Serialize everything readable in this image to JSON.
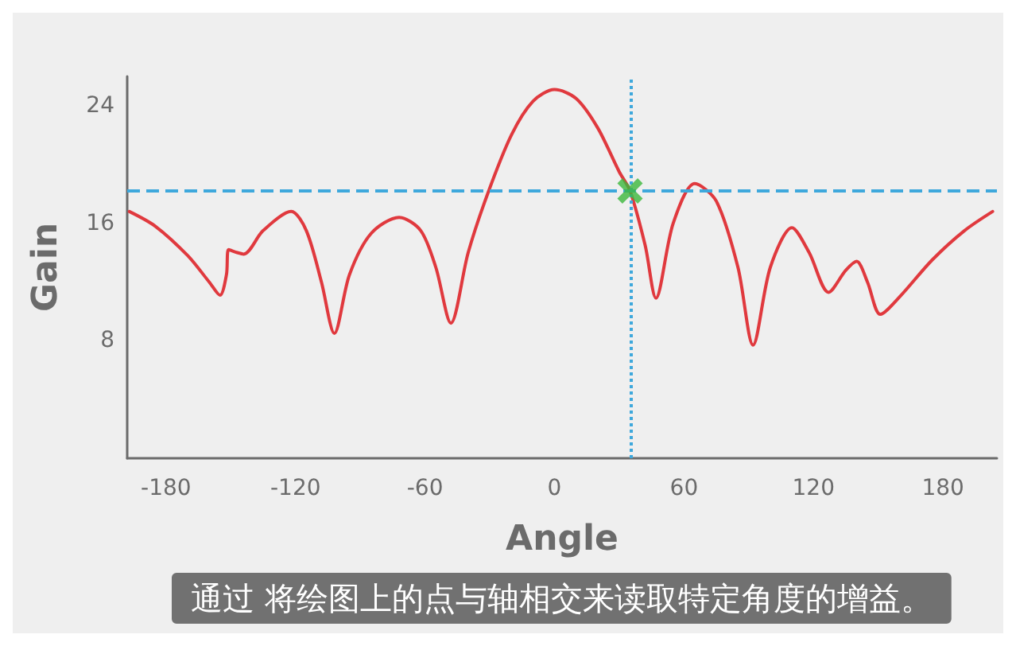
{
  "chart_data": {
    "type": "line",
    "xlabel": "Angle",
    "ylabel": "Gain",
    "xlim": [
      -198,
      205
    ],
    "xticks": [
      -180,
      -120,
      -60,
      0,
      60,
      120,
      180
    ],
    "ylim": [
      0,
      26
    ],
    "yticks": [
      8,
      16,
      24
    ],
    "grid": false,
    "series": [
      {
        "color": "#e0393e",
        "marker": "none",
        "line_style": "solid",
        "x": [
          -197,
          -185,
          -170,
          -160,
          -155,
          -152,
          -151,
          -147,
          -144,
          -135,
          -122,
          -115,
          -108,
          -102,
          -95,
          -85,
          -72,
          -62,
          -55,
          -48,
          -40,
          -31,
          -20,
          -10,
          0,
          10,
          20,
          30,
          35,
          42,
          47,
          55,
          65,
          75,
          85,
          92,
          100,
          110,
          118,
          127,
          135,
          140,
          145,
          151,
          160,
          175,
          190,
          203
        ],
        "values": [
          16.8,
          15.8,
          13.8,
          12,
          11.1,
          12.5,
          14.2,
          14,
          13.9,
          15.5,
          16.8,
          15.5,
          12,
          8.5,
          12.5,
          15.3,
          16.4,
          15.5,
          13,
          9.2,
          14,
          18,
          22,
          24.3,
          25.1,
          24.5,
          22.5,
          19.5,
          18.2,
          14.5,
          10.9,
          16,
          18.7,
          17.5,
          13,
          7.7,
          13,
          15.7,
          14,
          11.3,
          12.8,
          13.4,
          12,
          9.8,
          11,
          13.5,
          15.5,
          16.8
        ]
      },
      {
        "type": "scatter",
        "color": "#3cb83c",
        "marker": "cross",
        "x": [
          35
        ],
        "values": [
          18.2
        ]
      }
    ],
    "ref_lines": [
      {
        "axis": "y",
        "value": 18.2,
        "color": "#3ea8dc",
        "line_style": "dashed"
      },
      {
        "axis": "x",
        "value": 35,
        "color": "#3ea8dc",
        "line_style": "dotted"
      }
    ],
    "annotations": [
      "通过 将绘图上的点与轴相交来读取特定角度的增益。"
    ]
  }
}
